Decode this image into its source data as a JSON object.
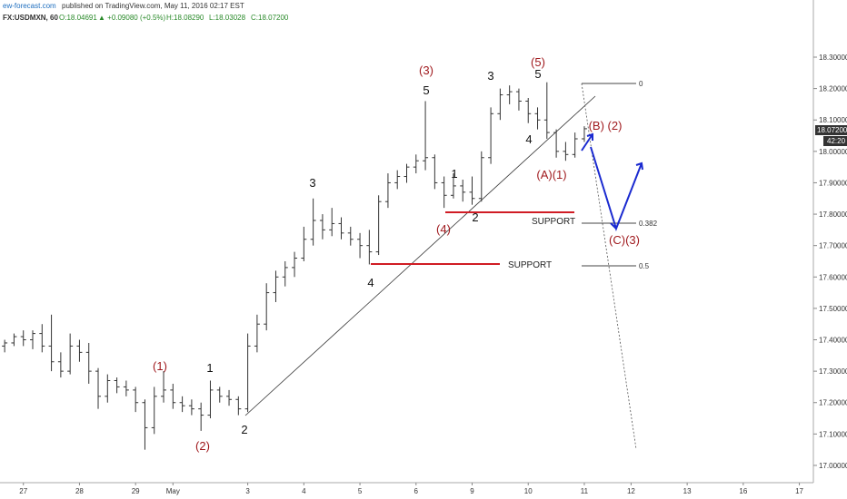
{
  "header": {
    "publisher": "ew-forecast.com",
    "published": "published on TradingView.com, May 11, 2016 02:17 EST",
    "symbol": "FX:USDMXN, 60",
    "open": "O:18.04691",
    "change": "▲ +0.09080 (+0.5%)",
    "high": "H:18.08290",
    "low": "L:18.03028",
    "close": "C:18.07200"
  },
  "price_tag": "18.07200",
  "countdown": "42:20",
  "annotations": [
    "(3)",
    "5",
    "(5)",
    "5",
    "3",
    "3",
    "1",
    "2",
    "4",
    "(4)",
    "4",
    "(A)(1)",
    "(B) (2)",
    "(C)(3)",
    "(1)",
    "1",
    "(2)",
    "2",
    "SUPPORT",
    "SUPPORT",
    "0",
    "0.382",
    "0.5"
  ],
  "chart_data": {
    "type": "ohlc",
    "color": "#333333",
    "categories": [
      null,
      null,
      "27",
      null,
      null,
      null,
      null,
      null,
      "28",
      null,
      null,
      null,
      null,
      null,
      "29",
      null,
      null,
      null,
      "May",
      null,
      null,
      null,
      null,
      null,
      null,
      null,
      "3",
      null,
      null,
      null,
      null,
      null,
      "4",
      null,
      null,
      null,
      null,
      null,
      "5",
      null,
      null,
      null,
      null,
      null,
      "6",
      null,
      null,
      null,
      null,
      null,
      "9",
      null,
      null,
      null,
      null,
      null,
      "10",
      null,
      null,
      null,
      null,
      null,
      "11",
      null,
      null,
      null,
      null,
      "12",
      null,
      null,
      null,
      null,
      null,
      "13",
      null,
      null,
      null,
      null,
      null,
      "16",
      null,
      null,
      null,
      null,
      null,
      "17",
      null
    ],
    "ohlc": [
      [
        17.38,
        17.4,
        17.36,
        17.39
      ],
      [
        17.39,
        17.42,
        17.38,
        17.41
      ],
      [
        17.41,
        17.43,
        17.38,
        17.4
      ],
      [
        17.4,
        17.43,
        17.37,
        17.42
      ],
      [
        17.42,
        17.45,
        17.36,
        17.38
      ],
      [
        17.38,
        17.48,
        17.3,
        17.33
      ],
      [
        17.33,
        17.36,
        17.28,
        17.3
      ],
      [
        17.3,
        17.42,
        17.29,
        17.38
      ],
      [
        17.38,
        17.4,
        17.33,
        17.36
      ],
      [
        17.36,
        17.39,
        17.26,
        17.3
      ],
      [
        17.3,
        17.31,
        17.18,
        17.22
      ],
      [
        17.22,
        17.29,
        17.2,
        17.27
      ],
      [
        17.27,
        17.28,
        17.23,
        17.25
      ],
      [
        17.25,
        17.27,
        17.22,
        17.24
      ],
      [
        17.24,
        17.25,
        17.17,
        17.2
      ],
      [
        17.2,
        17.21,
        17.05,
        17.12
      ],
      [
        17.12,
        17.25,
        17.1,
        17.22
      ],
      [
        17.22,
        17.3,
        17.2,
        17.24
      ],
      [
        17.24,
        17.26,
        17.18,
        17.2
      ],
      [
        17.2,
        17.22,
        17.17,
        17.19
      ],
      [
        17.19,
        17.21,
        17.16,
        17.18
      ],
      [
        17.18,
        17.2,
        17.11,
        17.16
      ],
      [
        17.16,
        17.27,
        17.15,
        17.24
      ],
      [
        17.24,
        17.25,
        17.2,
        17.22
      ],
      [
        17.22,
        17.24,
        17.19,
        17.21
      ],
      [
        17.21,
        17.22,
        17.16,
        17.18
      ],
      [
        17.18,
        17.42,
        17.17,
        17.38
      ],
      [
        17.38,
        17.48,
        17.36,
        17.45
      ],
      [
        17.45,
        17.58,
        17.43,
        17.55
      ],
      [
        17.55,
        17.62,
        17.52,
        17.6
      ],
      [
        17.6,
        17.65,
        17.57,
        17.63
      ],
      [
        17.63,
        17.68,
        17.6,
        17.66
      ],
      [
        17.66,
        17.76,
        17.65,
        17.72
      ],
      [
        17.72,
        17.85,
        17.7,
        17.78
      ],
      [
        17.78,
        17.8,
        17.72,
        17.75
      ],
      [
        17.75,
        17.82,
        17.73,
        17.77
      ],
      [
        17.77,
        17.79,
        17.72,
        17.74
      ],
      [
        17.74,
        17.76,
        17.7,
        17.72
      ],
      [
        17.72,
        17.74,
        17.66,
        17.7
      ],
      [
        17.7,
        17.75,
        17.64,
        17.68
      ],
      [
        17.68,
        17.86,
        17.67,
        17.84
      ],
      [
        17.84,
        17.93,
        17.82,
        17.9
      ],
      [
        17.9,
        17.94,
        17.88,
        17.92
      ],
      [
        17.92,
        17.96,
        17.9,
        17.95
      ],
      [
        17.95,
        17.99,
        17.93,
        17.97
      ],
      [
        17.97,
        18.16,
        17.94,
        17.98
      ],
      [
        17.98,
        17.99,
        17.88,
        17.9
      ],
      [
        17.9,
        17.92,
        17.82,
        17.86
      ],
      [
        17.86,
        17.93,
        17.85,
        17.89
      ],
      [
        17.89,
        17.91,
        17.84,
        17.87
      ],
      [
        17.87,
        17.92,
        17.83,
        17.85
      ],
      [
        17.85,
        18.0,
        17.84,
        17.98
      ],
      [
        17.98,
        18.14,
        17.96,
        18.12
      ],
      [
        18.12,
        18.2,
        18.1,
        18.18
      ],
      [
        18.18,
        18.21,
        18.15,
        18.19
      ],
      [
        18.19,
        18.2,
        18.13,
        18.16
      ],
      [
        18.16,
        18.17,
        18.09,
        18.12
      ],
      [
        18.12,
        18.14,
        18.07,
        18.1
      ],
      [
        18.1,
        18.22,
        18.04,
        18.06
      ],
      [
        18.06,
        18.07,
        17.98,
        18.0
      ],
      [
        18.0,
        18.03,
        17.97,
        17.99
      ],
      [
        17.99,
        18.06,
        17.98,
        18.04
      ],
      [
        18.04,
        18.08,
        18.03,
        18.072
      ],
      null,
      null,
      null,
      null,
      null,
      null,
      null,
      null,
      null,
      null,
      null,
      null,
      null,
      null,
      null,
      null,
      null,
      null,
      null,
      null,
      null,
      null,
      null,
      null
    ],
    "ylim": [
      16.945,
      18.482
    ],
    "yticks": [
      {
        "value": 17.0,
        "label": "17.00000"
      },
      {
        "value": 17.1,
        "label": "17.10000"
      },
      {
        "value": 17.2,
        "label": "17.20000"
      },
      {
        "value": 17.3,
        "label": "17.30000"
      },
      {
        "value": 17.4,
        "label": "17.40000"
      },
      {
        "value": 17.5,
        "label": "17.50000"
      },
      {
        "value": 17.6,
        "label": "17.60000"
      },
      {
        "value": 17.7,
        "label": "17.70000"
      },
      {
        "value": 17.8,
        "label": "17.80000"
      },
      {
        "value": 17.9,
        "label": "17.90000"
      },
      {
        "value": 18.0,
        "label": "18.00000"
      },
      {
        "value": 18.1,
        "label": "18.10000"
      },
      {
        "value": 18.2,
        "label": "18.20000"
      },
      {
        "value": 18.3,
        "label": "18.30000"
      }
    ]
  }
}
